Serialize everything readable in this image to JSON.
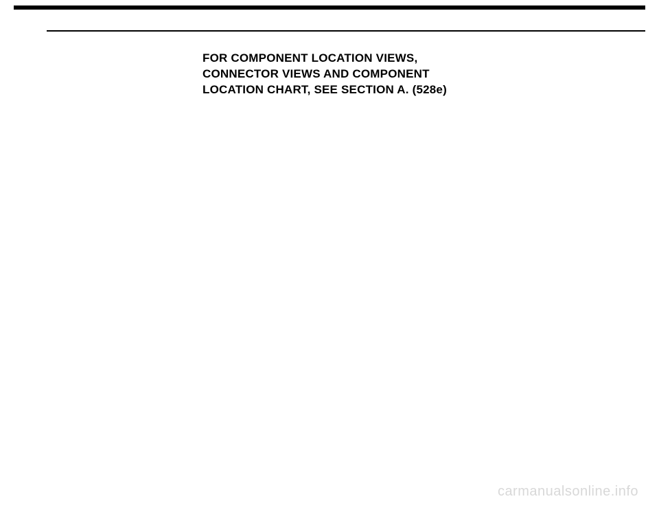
{
  "content": {
    "line1": "FOR COMPONENT LOCATION VIEWS,",
    "line2": "CONNECTOR VIEWS AND COMPONENT",
    "line3": "LOCATION CHART, SEE SECTION A. (528e)"
  },
  "watermark": "carmanualsonline.info",
  "colors": {
    "background": "#ffffff",
    "text": "#000000",
    "bar": "#000000",
    "watermark": "#d8d8d8"
  }
}
